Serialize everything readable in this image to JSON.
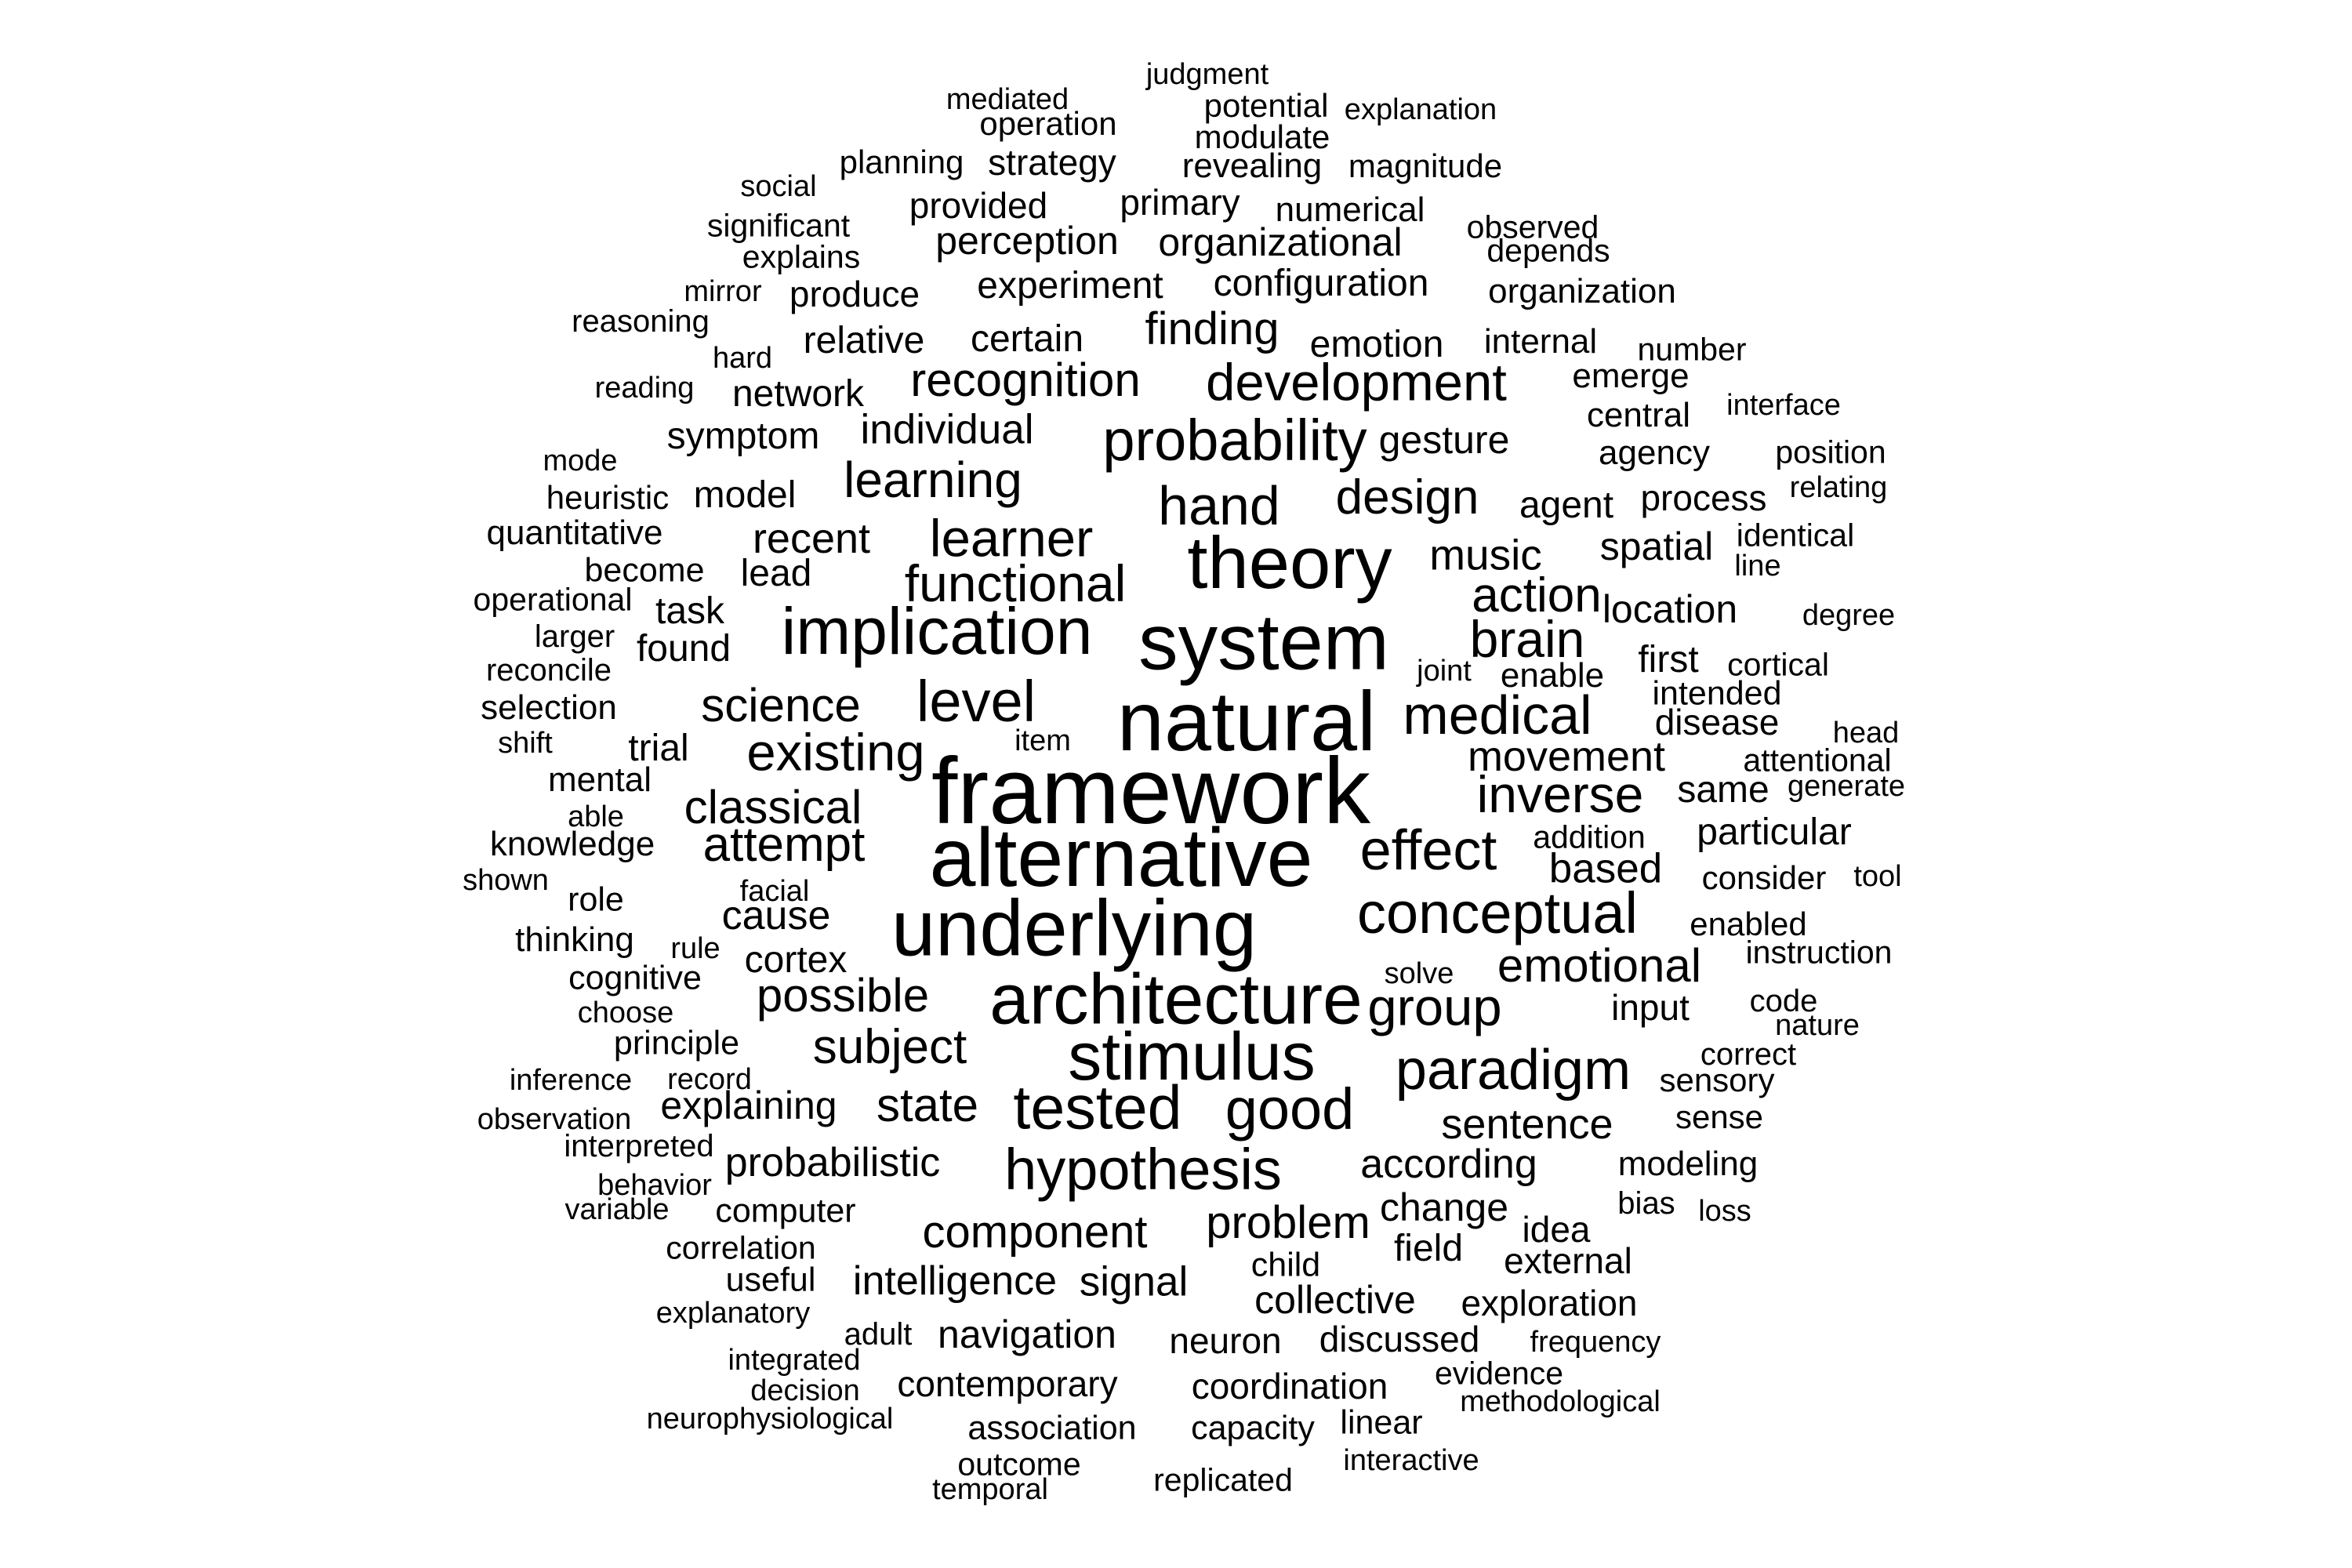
{
  "word_cloud": {
    "text_color": "#000000",
    "background_color": "#ffffff",
    "words": [
      {
        "text": "framework",
        "weight": 1.0
      },
      {
        "text": "natural",
        "weight": 0.9
      },
      {
        "text": "alternative",
        "weight": 0.88
      },
      {
        "text": "system",
        "weight": 0.84
      },
      {
        "text": "underlying",
        "weight": 0.84
      },
      {
        "text": "theory",
        "weight": 0.78
      },
      {
        "text": "architecture",
        "weight": 0.76
      },
      {
        "text": "stimulus",
        "weight": 0.72
      },
      {
        "text": "implication",
        "weight": 0.7
      },
      {
        "text": "tested",
        "weight": 0.66
      },
      {
        "text": "hypothesis",
        "weight": 0.62
      },
      {
        "text": "probability",
        "weight": 0.62
      },
      {
        "text": "conceptual",
        "weight": 0.62
      },
      {
        "text": "level",
        "weight": 0.62
      },
      {
        "text": "good",
        "weight": 0.62
      },
      {
        "text": "effect",
        "weight": 0.6
      },
      {
        "text": "paradigm",
        "weight": 0.6
      },
      {
        "text": "medical",
        "weight": 0.58
      },
      {
        "text": "hand",
        "weight": 0.58
      },
      {
        "text": "group",
        "weight": 0.56
      },
      {
        "text": "development",
        "weight": 0.56
      },
      {
        "text": "learner",
        "weight": 0.56
      },
      {
        "text": "existing",
        "weight": 0.56
      },
      {
        "text": "functional",
        "weight": 0.55
      },
      {
        "text": "inverse",
        "weight": 0.55
      },
      {
        "text": "brain",
        "weight": 0.55
      },
      {
        "text": "learning",
        "weight": 0.53
      },
      {
        "text": "design",
        "weight": 0.52
      },
      {
        "text": "action",
        "weight": 0.52
      },
      {
        "text": "attempt",
        "weight": 0.52
      },
      {
        "text": "subject",
        "weight": 0.52
      },
      {
        "text": "recognition",
        "weight": 0.5
      },
      {
        "text": "possible",
        "weight": 0.5
      },
      {
        "text": "science",
        "weight": 0.5
      },
      {
        "text": "classical",
        "weight": 0.5
      },
      {
        "text": "emotional",
        "weight": 0.5
      },
      {
        "text": "state",
        "weight": 0.5
      },
      {
        "text": "component",
        "weight": 0.48
      },
      {
        "text": "finding",
        "weight": 0.48
      },
      {
        "text": "problem",
        "weight": 0.48
      },
      {
        "text": "music",
        "weight": 0.46
      },
      {
        "text": "movement",
        "weight": 0.45
      },
      {
        "text": "recent",
        "weight": 0.45
      },
      {
        "text": "sentence",
        "weight": 0.45
      },
      {
        "text": "based",
        "weight": 0.44
      },
      {
        "text": "individual",
        "weight": 0.44
      },
      {
        "text": "probabilistic",
        "weight": 0.43
      },
      {
        "text": "signal",
        "weight": 0.44
      },
      {
        "text": "intelligence",
        "weight": 0.43
      },
      {
        "text": "according",
        "weight": 0.43
      },
      {
        "text": "cause",
        "weight": 0.43
      },
      {
        "text": "navigation",
        "weight": 0.42
      },
      {
        "text": "gesture",
        "weight": 0.42
      },
      {
        "text": "explaining",
        "weight": 0.42
      },
      {
        "text": "collective",
        "weight": 0.42
      },
      {
        "text": "change",
        "weight": 0.42
      },
      {
        "text": "spatial",
        "weight": 0.42
      },
      {
        "text": "perception",
        "weight": 0.42
      },
      {
        "text": "organizational",
        "weight": 0.42
      },
      {
        "text": "location",
        "weight": 0.42
      },
      {
        "text": "experiment",
        "weight": 0.4
      },
      {
        "text": "configuration",
        "weight": 0.4
      },
      {
        "text": "symptom",
        "weight": 0.4
      },
      {
        "text": "cortex",
        "weight": 0.4
      },
      {
        "text": "field",
        "weight": 0.4
      },
      {
        "text": "agent",
        "weight": 0.4
      },
      {
        "text": "emotion",
        "weight": 0.4
      },
      {
        "text": "particular",
        "weight": 0.4
      },
      {
        "text": "relative",
        "weight": 0.4
      },
      {
        "text": "certain",
        "weight": 0.4
      },
      {
        "text": "network",
        "weight": 0.4
      },
      {
        "text": "model",
        "weight": 0.4
      },
      {
        "text": "lead",
        "weight": 0.4
      },
      {
        "text": "task",
        "weight": 0.4
      },
      {
        "text": "found",
        "weight": 0.4
      },
      {
        "text": "trial",
        "weight": 0.4
      },
      {
        "text": "first",
        "weight": 0.4
      },
      {
        "text": "same",
        "weight": 0.4
      },
      {
        "text": "disease",
        "weight": 0.38
      },
      {
        "text": "produce",
        "weight": 0.38
      },
      {
        "text": "process",
        "weight": 0.38
      },
      {
        "text": "input",
        "weight": 0.38
      },
      {
        "text": "neuron",
        "weight": 0.38
      },
      {
        "text": "coordination",
        "weight": 0.38
      },
      {
        "text": "contemporary",
        "weight": 0.38
      },
      {
        "text": "discussed",
        "weight": 0.38
      },
      {
        "text": "exploration",
        "weight": 0.38
      },
      {
        "text": "external",
        "weight": 0.38
      },
      {
        "text": "idea",
        "weight": 0.38
      },
      {
        "text": "primary",
        "weight": 0.38
      },
      {
        "text": "provided",
        "weight": 0.38
      },
      {
        "text": "strategy",
        "weight": 0.38
      },
      {
        "text": "numerical",
        "weight": 0.37
      },
      {
        "text": "revealing",
        "weight": 0.37
      },
      {
        "text": "organization",
        "weight": 0.37
      },
      {
        "text": "internal",
        "weight": 0.37
      },
      {
        "text": "emerge",
        "weight": 0.37
      },
      {
        "text": "central",
        "weight": 0.37
      },
      {
        "text": "agency",
        "weight": 0.37
      },
      {
        "text": "enable",
        "weight": 0.37
      },
      {
        "text": "modeling",
        "weight": 0.37
      },
      {
        "text": "knowledge",
        "weight": 0.37
      },
      {
        "text": "thinking",
        "weight": 0.37
      },
      {
        "text": "mental",
        "weight": 0.37
      },
      {
        "text": "selection",
        "weight": 0.37
      },
      {
        "text": "quantitative",
        "weight": 0.37
      },
      {
        "text": "cognitive",
        "weight": 0.36
      },
      {
        "text": "principle",
        "weight": 0.36
      },
      {
        "text": "computer",
        "weight": 0.36
      },
      {
        "text": "useful",
        "weight": 0.36
      },
      {
        "text": "child",
        "weight": 0.36
      },
      {
        "text": "association",
        "weight": 0.36
      },
      {
        "text": "capacity",
        "weight": 0.36
      },
      {
        "text": "linear",
        "weight": 0.36
      },
      {
        "text": "intended",
        "weight": 0.36
      },
      {
        "text": "become",
        "weight": 0.36
      },
      {
        "text": "heuristic",
        "weight": 0.35
      },
      {
        "text": "role",
        "weight": 0.36
      },
      {
        "text": "sensory",
        "weight": 0.35
      },
      {
        "text": "sense",
        "weight": 0.35
      },
      {
        "text": "consider",
        "weight": 0.35
      },
      {
        "text": "enabled",
        "weight": 0.35
      },
      {
        "text": "position",
        "weight": 0.34
      },
      {
        "text": "planning",
        "weight": 0.35
      },
      {
        "text": "potential",
        "weight": 0.35
      },
      {
        "text": "modulate",
        "weight": 0.35
      },
      {
        "text": "magnitude",
        "weight": 0.35
      },
      {
        "text": "operation",
        "weight": 0.35
      },
      {
        "text": "significant",
        "weight": 0.34
      },
      {
        "text": "observed",
        "weight": 0.34
      },
      {
        "text": "depends",
        "weight": 0.34
      },
      {
        "text": "explains",
        "weight": 0.34
      },
      {
        "text": "number",
        "weight": 0.34
      },
      {
        "text": "identical",
        "weight": 0.34
      },
      {
        "text": "cortical",
        "weight": 0.34
      },
      {
        "text": "attentional",
        "weight": 0.34
      },
      {
        "text": "addition",
        "weight": 0.34
      },
      {
        "text": "instruction",
        "weight": 0.34
      },
      {
        "text": "correlation",
        "weight": 0.34
      },
      {
        "text": "evidence",
        "weight": 0.34
      },
      {
        "text": "outcome",
        "weight": 0.34
      },
      {
        "text": "replicated",
        "weight": 0.34
      },
      {
        "text": "operational",
        "weight": 0.34
      },
      {
        "text": "reasoning",
        "weight": 0.33
      },
      {
        "text": "reconcile",
        "weight": 0.33
      },
      {
        "text": "larger",
        "weight": 0.33
      },
      {
        "text": "bias",
        "weight": 0.33
      },
      {
        "text": "adult",
        "weight": 0.33
      },
      {
        "text": "interpreted",
        "weight": 0.33
      },
      {
        "text": "code",
        "weight": 0.33
      },
      {
        "text": "correct",
        "weight": 0.33
      },
      {
        "text": "reading",
        "weight": 0.32
      },
      {
        "text": "hard",
        "weight": 0.32
      },
      {
        "text": "explanation",
        "weight": 0.32
      },
      {
        "text": "judgment",
        "weight": 0.32
      },
      {
        "text": "mediated",
        "weight": 0.32
      },
      {
        "text": "social",
        "weight": 0.32
      },
      {
        "text": "mirror",
        "weight": 0.32
      },
      {
        "text": "interface",
        "weight": 0.32
      },
      {
        "text": "mode",
        "weight": 0.32
      },
      {
        "text": "relating",
        "weight": 0.32
      },
      {
        "text": "line",
        "weight": 0.32
      },
      {
        "text": "degree",
        "weight": 0.32
      },
      {
        "text": "joint",
        "weight": 0.32
      },
      {
        "text": "head",
        "weight": 0.32
      },
      {
        "text": "generate",
        "weight": 0.32
      },
      {
        "text": "tool",
        "weight": 0.32
      },
      {
        "text": "nature",
        "weight": 0.32
      },
      {
        "text": "loss",
        "weight": 0.32
      },
      {
        "text": "shift",
        "weight": 0.32
      },
      {
        "text": "able",
        "weight": 0.32
      },
      {
        "text": "shown",
        "weight": 0.32
      },
      {
        "text": "facial",
        "weight": 0.32
      },
      {
        "text": "rule",
        "weight": 0.32
      },
      {
        "text": "item",
        "weight": 0.32
      },
      {
        "text": "choose",
        "weight": 0.32
      },
      {
        "text": "solve",
        "weight": 0.32
      },
      {
        "text": "inference",
        "weight": 0.32
      },
      {
        "text": "record",
        "weight": 0.32
      },
      {
        "text": "observation",
        "weight": 0.32
      },
      {
        "text": "behavior",
        "weight": 0.32
      },
      {
        "text": "variable",
        "weight": 0.32
      },
      {
        "text": "explanatory",
        "weight": 0.32
      },
      {
        "text": "integrated",
        "weight": 0.32
      },
      {
        "text": "decision",
        "weight": 0.32
      },
      {
        "text": "neurophysiological",
        "weight": 0.32
      },
      {
        "text": "temporal",
        "weight": 0.32
      },
      {
        "text": "frequency",
        "weight": 0.32
      },
      {
        "text": "methodological",
        "weight": 0.32
      },
      {
        "text": "interactive",
        "weight": 0.32
      }
    ]
  }
}
